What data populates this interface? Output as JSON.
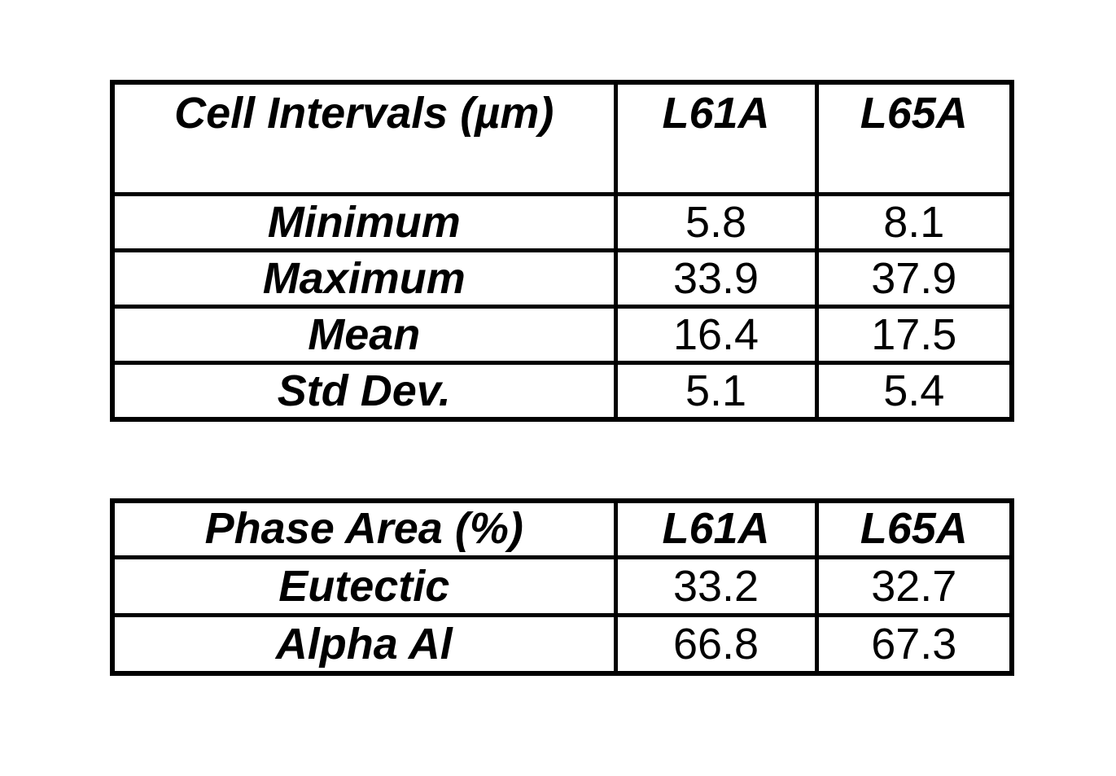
{
  "page": {
    "background_color": "#ffffff",
    "border_color": "#000000",
    "text_color": "#000000"
  },
  "tables": [
    {
      "title": "Cell Intervals (µm)",
      "columns": [
        "L61A",
        "L65A"
      ],
      "rows": [
        {
          "label": "Minimum",
          "values": [
            "5.8",
            "8.1"
          ]
        },
        {
          "label": "Maximum",
          "values": [
            "33.9",
            "37.9"
          ]
        },
        {
          "label": "Mean",
          "values": [
            "16.4",
            "17.5"
          ]
        },
        {
          "label": "Std Dev.",
          "values": [
            "5.1",
            "5.4"
          ]
        }
      ]
    },
    {
      "title": "Phase Area (%)",
      "columns": [
        "L61A",
        "L65A"
      ],
      "rows": [
        {
          "label": "Eutectic",
          "values": [
            "33.2",
            "32.7"
          ]
        },
        {
          "label": "Alpha Al",
          "values": [
            "66.8",
            "67.3"
          ]
        }
      ]
    }
  ],
  "chart_data": [
    {
      "type": "table",
      "title": "Cell Intervals (µm)",
      "column_headers": [
        "Cell Intervals (µm)",
        "L61A",
        "L65A"
      ],
      "row_labels": [
        "Minimum",
        "Maximum",
        "Mean",
        "Std Dev."
      ],
      "series": [
        {
          "name": "L61A",
          "values": [
            5.8,
            33.9,
            16.4,
            5.1
          ]
        },
        {
          "name": "L65A",
          "values": [
            8.1,
            37.9,
            17.5,
            5.4
          ]
        }
      ]
    },
    {
      "type": "table",
      "title": "Phase Area (%)",
      "column_headers": [
        "Phase Area (%)",
        "L61A",
        "L65A"
      ],
      "row_labels": [
        "Eutectic",
        "Alpha Al"
      ],
      "series": [
        {
          "name": "L61A",
          "values": [
            33.2,
            66.8
          ]
        },
        {
          "name": "L65A",
          "values": [
            32.7,
            67.3
          ]
        }
      ]
    }
  ]
}
